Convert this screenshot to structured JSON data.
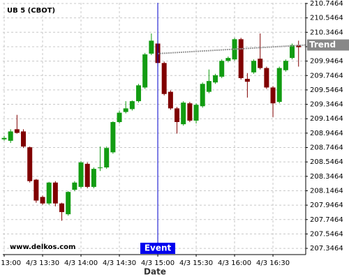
{
  "chart_data": {
    "type": "candlestick",
    "title": "UB 5 (CBOT)",
    "watermark": "www.delkos.com",
    "x_label": "Date",
    "up_color": "#129c12",
    "down_color": "#800000",
    "grid": true,
    "xlim": [
      778.9,
      1015.6
    ],
    "xticks": [
      {
        "value": 780,
        "label": "4/3 13:00"
      },
      {
        "value": 810,
        "label": "4/3 13:30"
      },
      {
        "value": 840,
        "label": "4/3 14:00"
      },
      {
        "value": 870,
        "label": "4/3 14:30"
      },
      {
        "value": 900,
        "label": "4/3 15:00"
      },
      {
        "value": 930,
        "label": "4/3 15:30"
      },
      {
        "value": 960,
        "label": "4/3 16:00"
      },
      {
        "value": 990,
        "label": "4/3 16:30"
      }
    ],
    "ylim": [
      207.26,
      210.756
    ],
    "yticks": [
      207.3464,
      207.5464,
      207.7464,
      207.9464,
      208.1464,
      208.3464,
      208.5464,
      208.7464,
      208.9464,
      209.1464,
      209.3464,
      209.5464,
      209.7464,
      209.9464,
      210.1464,
      210.3464,
      210.5464,
      210.7464
    ],
    "x": [
      780,
      785,
      790,
      795,
      800,
      805,
      810,
      815,
      820,
      825,
      830,
      835,
      840,
      845,
      850,
      855,
      860,
      865,
      870,
      875,
      880,
      885,
      890,
      895,
      900,
      905,
      910,
      915,
      920,
      925,
      930,
      935,
      940,
      945,
      950,
      955,
      960,
      965,
      970,
      975,
      980,
      985,
      990,
      995,
      1000,
      1005,
      1010
    ],
    "open": [
      208.86,
      208.84,
      209.0,
      208.97,
      208.75,
      208.3,
      208.06,
      207.97,
      208.26,
      207.97,
      207.82,
      208.16,
      208.2,
      208.52,
      208.2,
      208.46,
      208.47,
      208.68,
      209.1,
      209.24,
      209.28,
      209.39,
      209.58,
      210.05,
      210.19,
      209.92,
      209.52,
      209.29,
      209.07,
      209.36,
      209.12,
      209.32,
      209.52,
      209.65,
      209.73,
      209.95,
      209.97,
      210.25,
      209.7,
      209.79,
      209.98,
      209.85,
      209.58,
      209.38,
      209.82,
      209.99,
      210.17
    ],
    "high": [
      208.91,
      209.0,
      209.2,
      209.0,
      208.76,
      208.31,
      208.08,
      208.27,
      208.28,
      207.98,
      208.14,
      208.28,
      208.56,
      208.54,
      208.47,
      208.76,
      208.76,
      209.11,
      209.26,
      209.39,
      209.4,
      209.63,
      210.06,
      210.33,
      210.23,
      209.94,
      209.54,
      209.31,
      209.39,
      209.38,
      209.36,
      209.65,
      209.83,
      209.77,
      209.97,
      210.01,
      210.27,
      210.27,
      209.78,
      209.97,
      210.33,
      209.87,
      209.6,
      209.87,
      209.97,
      210.19,
      210.23
    ],
    "low": [
      208.84,
      208.81,
      208.94,
      208.74,
      208.26,
      207.98,
      207.95,
      207.95,
      207.93,
      207.73,
      207.8,
      208.14,
      208.18,
      208.18,
      208.18,
      208.42,
      208.45,
      208.66,
      209.08,
      209.22,
      209.26,
      209.37,
      209.56,
      210.03,
      209.87,
      209.47,
      209.27,
      208.94,
      209.05,
      209.1,
      209.08,
      209.3,
      209.5,
      209.63,
      209.71,
      209.93,
      209.95,
      209.69,
      209.44,
      209.77,
      209.83,
      209.56,
      209.17,
      209.36,
      209.8,
      209.97,
      209.87
    ],
    "close": [
      208.88,
      208.97,
      208.95,
      208.76,
      208.28,
      208.01,
      207.97,
      208.26,
      207.97,
      207.85,
      208.13,
      208.26,
      208.54,
      208.2,
      208.45,
      208.47,
      208.74,
      209.1,
      209.23,
      209.29,
      209.39,
      209.61,
      210.04,
      210.23,
      209.92,
      209.49,
      209.29,
      209.1,
      209.37,
      209.12,
      209.34,
      209.63,
      209.67,
      209.75,
      209.95,
      209.99,
      210.25,
      209.71,
      209.66,
      209.95,
      209.85,
      209.58,
      209.36,
      209.85,
      209.95,
      210.17,
      210.14
    ],
    "event": {
      "label": "Event",
      "x": 900
    },
    "trend": {
      "label": "Trend",
      "x": [
        900,
        1015.6
      ],
      "values": [
        210.05,
        210.17
      ]
    }
  }
}
